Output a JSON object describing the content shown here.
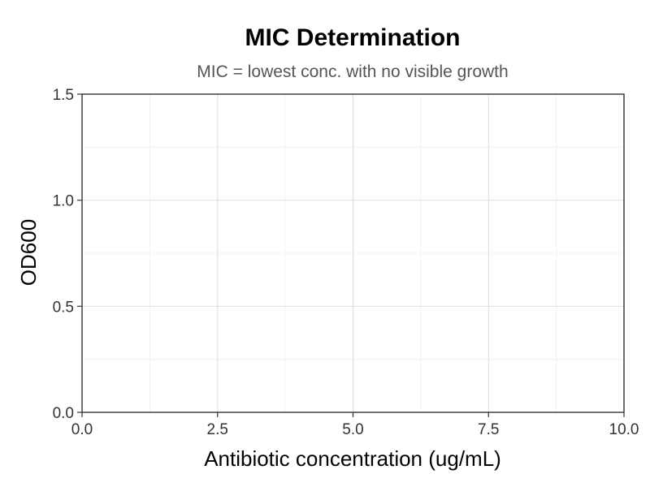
{
  "chart_data": {
    "type": "line",
    "title": "MIC Determination",
    "subtitle": "MIC = lowest conc. with no visible growth",
    "xlabel": "Antibiotic concentration (ug/mL)",
    "ylabel": "OD600",
    "xlim": [
      0,
      10
    ],
    "ylim": [
      0,
      1.5
    ],
    "x_ticks": [
      0,
      2.5,
      5,
      7.5,
      10
    ],
    "x_tick_labels": [
      "0.0",
      "2.5",
      "5.0",
      "7.5",
      "10.0"
    ],
    "y_ticks": [
      0,
      0.5,
      1,
      1.5
    ],
    "y_tick_labels": [
      "0.0",
      "0.5",
      "1.0",
      "1.5"
    ],
    "grid": true,
    "series": []
  },
  "colors": {
    "major_grid": "#dedede",
    "minor_grid": "#efefef",
    "axis": "#333333",
    "title": "#000000",
    "subtitle": "#555555"
  }
}
